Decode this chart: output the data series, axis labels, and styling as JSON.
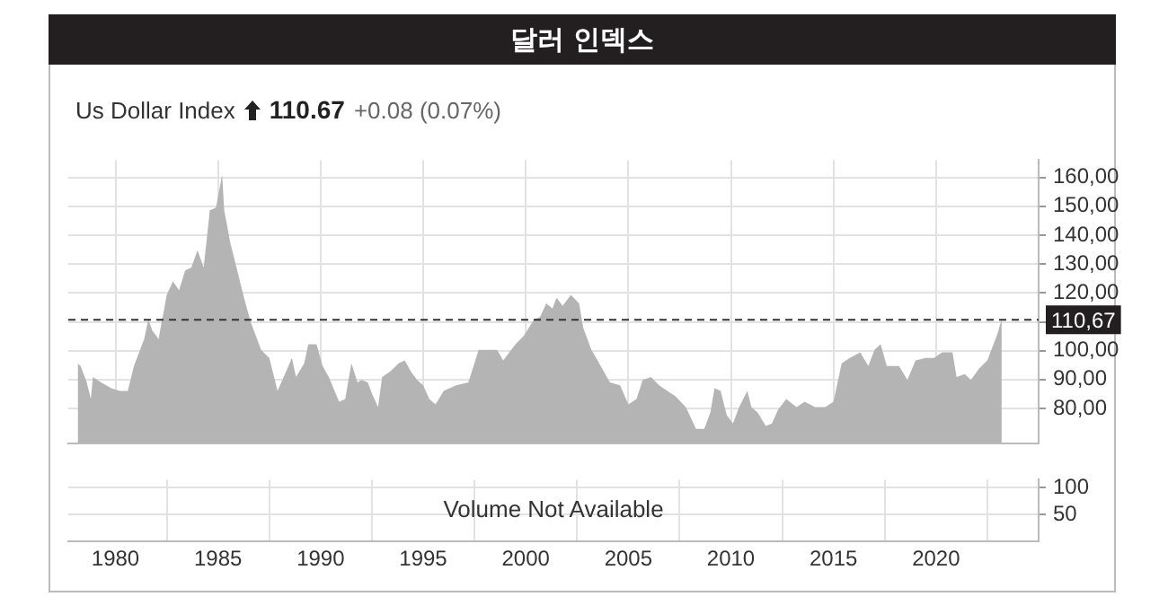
{
  "chart_data": [
    {
      "type": "area",
      "title": "달러 인덱스",
      "subtitle": "Us Dollar Index",
      "annotations": [
        "110.67",
        "+0.08 (0.07%)"
      ],
      "x": [
        1978.16,
        1978.3,
        1978.6,
        1978.8,
        1978.9,
        1979.3,
        1979.8,
        1980.2,
        1980.6,
        1980.9,
        1981.4,
        1981.6,
        1981.8,
        1982.1,
        1982.5,
        1982.8,
        1983.1,
        1983.4,
        1983.7,
        1984,
        1984.3,
        1984.6,
        1984.9,
        1985.2,
        1985.3,
        1985.6,
        1985.9,
        1986.3,
        1986.6,
        1987.1,
        1987.5,
        1987.9,
        1988.2,
        1988.6,
        1988.8,
        1989.2,
        1989.4,
        1989.8,
        1990.1,
        1990.4,
        1990.9,
        1991.2,
        1991.5,
        1991.8,
        1992,
        1992.3,
        1992.5,
        1992.8,
        1993,
        1993.4,
        1993.8,
        1994.1,
        1994.4,
        1994.7,
        1995,
        1995.3,
        1995.6,
        1996,
        1996.6,
        1997.2,
        1997.5,
        1997.7,
        1998.2,
        1998.6,
        1998.9,
        1999.5,
        1999.9,
        2000.4,
        2000.7,
        2001,
        2001.3,
        2001.5,
        2001.8,
        2002.2,
        2002.6,
        2002.8,
        2003.2,
        2003.5,
        2003.8,
        2004.1,
        2004.6,
        2005,
        2005.4,
        2005.7,
        2006.1,
        2006.5,
        2006.9,
        2007.3,
        2007.8,
        2008.3,
        2008.7,
        2009,
        2009.2,
        2009.5,
        2009.8,
        2010.1,
        2010.4,
        2010.8,
        2011,
        2011.3,
        2011.7,
        2012,
        2012.3,
        2012.7,
        2013.2,
        2013.6,
        2014.1,
        2014.6,
        2015,
        2015.4,
        2015.8,
        2016.3,
        2016.7,
        2017,
        2017.3,
        2017.6,
        2018.2,
        2018.6,
        2019,
        2019.5,
        2019.9,
        2020.3,
        2020.8,
        2021,
        2021.4,
        2021.7,
        2022.1,
        2022.5,
        2023,
        2023.2
      ],
      "series": [
        {
          "color": "#b4b4b4",
          "values": [
            95.6,
            94.7,
            89,
            83.3,
            90.9,
            89,
            87,
            86.1,
            86.1,
            94.7,
            104,
            110.8,
            107,
            104,
            119.3,
            124,
            121,
            127.8,
            128.8,
            134.8,
            128.8,
            148.6,
            149.6,
            160.9,
            148.6,
            137.3,
            128.8,
            117.4,
            109.8,
            100.3,
            97.5,
            86.1,
            90.9,
            97.5,
            90.9,
            95.6,
            102.2,
            102.2,
            94.7,
            90.9,
            82.3,
            83.3,
            95.6,
            89,
            89.9,
            89,
            85.2,
            80.5,
            90.9,
            92.8,
            95.6,
            96.6,
            92.8,
            89.9,
            88,
            83.3,
            81.4,
            86.1,
            88,
            89,
            95.6,
            100.3,
            100.3,
            100.3,
            96.6,
            102.2,
            105.1,
            110.8,
            111.7,
            116.4,
            114.6,
            118.3,
            115.5,
            119.3,
            116.4,
            108,
            100.3,
            96.6,
            92.8,
            89,
            88,
            81.4,
            83.3,
            89.9,
            90.9,
            88,
            86.1,
            84.2,
            80.5,
            72.9,
            72.9,
            78.6,
            87,
            86.1,
            77.7,
            74.8,
            80.5,
            86.1,
            80.5,
            78.6,
            73.9,
            74.8,
            79.5,
            83.3,
            80.5,
            82.3,
            80.5,
            80.5,
            82.3,
            95.6,
            97.5,
            99.4,
            94.7,
            100.3,
            102.2,
            94.7,
            94.7,
            89.9,
            96.6,
            97.5,
            97.5,
            99.4,
            99.4,
            90.9,
            91.9,
            89.9,
            93.8,
            96.6,
            106,
            111
          ]
        }
      ],
      "xlim": [
        1977.7,
        2025.0
      ],
      "ylim": [
        68,
        166
      ],
      "yticks": [
        {
          "value": 80,
          "label": "80,00"
        },
        {
          "value": 90,
          "label": "90,00"
        },
        {
          "value": 100,
          "label": "100,00"
        },
        {
          "value": 110,
          "label": null
        },
        {
          "value": 120,
          "label": "120,00"
        },
        {
          "value": 130,
          "label": "130,00"
        },
        {
          "value": 140,
          "label": "140,00"
        },
        {
          "value": 150,
          "label": "150,00"
        },
        {
          "value": 160,
          "label": "160,00"
        }
      ],
      "xticks": [
        1980,
        1985,
        1990,
        1995,
        2000,
        2005,
        2010,
        2015,
        2020
      ],
      "tick_labels": "y",
      "grid": true,
      "legend": false,
      "ref_lines": [
        {
          "axis": "y",
          "value": 110.67,
          "label": "110,67",
          "color": "#333333",
          "line_style": "dashed"
        }
      ]
    },
    {
      "type": "bar",
      "annotations": [
        "Volume Not Available"
      ],
      "xlim": [
        1977.7,
        2025.0
      ],
      "ylim": [
        0,
        115
      ],
      "yticks": [
        50,
        100
      ],
      "xticks": [
        1980,
        1985,
        1990,
        1995,
        2000,
        2005,
        2010,
        2015,
        2020
      ],
      "grid": true,
      "legend": false
    }
  ]
}
